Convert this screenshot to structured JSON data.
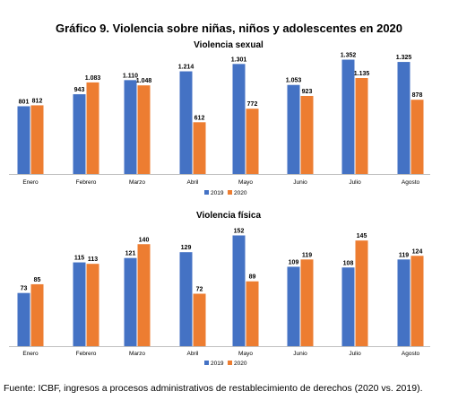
{
  "title": "Gráfico 9. Violencia sobre niñas, niños y adolescentes en 2020",
  "source": "Fuente: ICBF, ingresos a procesos administrativos de restablecimiento de derechos (2020 vs. 2019).",
  "colors": {
    "s2019": "#4472C4",
    "s2020": "#ED7D31",
    "axis": "#BFBFBF"
  },
  "chart_data": [
    {
      "type": "bar",
      "title": "Violencia sexual",
      "categories": [
        "Enero",
        "Febrero",
        "Marzo",
        "Abril",
        "Mayo",
        "Junio",
        "Julio",
        "Agosto"
      ],
      "series": [
        {
          "name": "2019",
          "values": [
            801,
            943,
            1110,
            1214,
            1301,
            1053,
            1352,
            1325
          ],
          "labels": [
            "801",
            "943",
            "1.110",
            "1.214",
            "1.301",
            "1.053",
            "1.352",
            "1.325"
          ]
        },
        {
          "name": "2020",
          "values": [
            812,
            1083,
            1048,
            612,
            772,
            923,
            1135,
            878
          ],
          "labels": [
            "812",
            "1.083",
            "1.048",
            "612",
            "772",
            "923",
            "1.135",
            "878"
          ]
        }
      ],
      "ylim": [
        0,
        1400
      ],
      "legend": "bottom",
      "grid": false
    },
    {
      "type": "bar",
      "title": "Violencia física",
      "categories": [
        "Enero",
        "Febrero",
        "Marzo",
        "Abril",
        "Mayo",
        "Junio",
        "Julio",
        "Agosto"
      ],
      "series": [
        {
          "name": "2019",
          "values": [
            73,
            115,
            121,
            129,
            152,
            109,
            108,
            119
          ],
          "labels": [
            "73",
            "115",
            "121",
            "129",
            "152",
            "109",
            "108",
            "119"
          ]
        },
        {
          "name": "2020",
          "values": [
            85,
            113,
            140,
            72,
            89,
            119,
            145,
            124
          ],
          "labels": [
            "85",
            "113",
            "140",
            "72",
            "89",
            "119",
            "145",
            "124"
          ]
        }
      ],
      "ylim": [
        0,
        160
      ],
      "legend": "bottom",
      "grid": false
    }
  ]
}
